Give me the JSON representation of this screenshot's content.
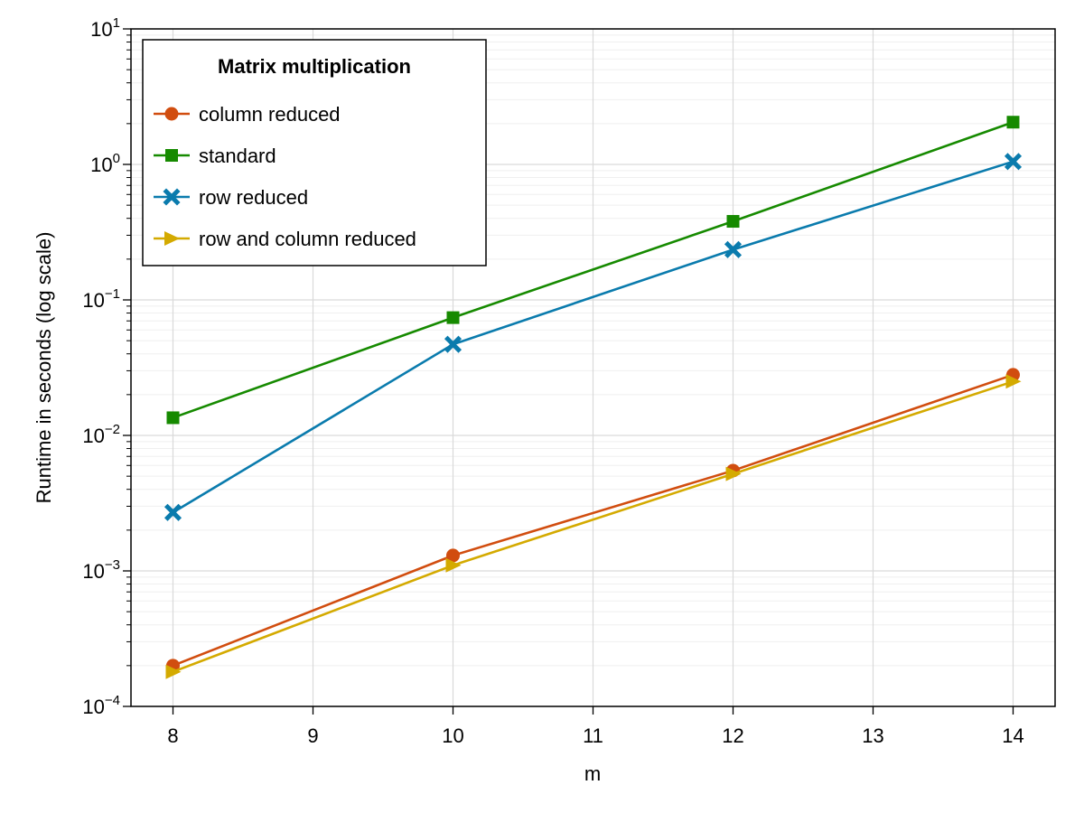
{
  "chart_data": {
    "type": "line",
    "title": "",
    "xlabel": "m",
    "ylabel": "Runtime in seconds (log scale)",
    "y_scale": "log",
    "xlim": [
      7.7,
      14.3
    ],
    "ylim": [
      0.0001,
      10
    ],
    "x_ticks": [
      8,
      9,
      10,
      11,
      12,
      13,
      14
    ],
    "y_ticks": [
      {
        "base": "10",
        "exp": "−4",
        "value": 0.0001
      },
      {
        "base": "10",
        "exp": "−3",
        "value": 0.001
      },
      {
        "base": "10",
        "exp": "−2",
        "value": 0.01
      },
      {
        "base": "10",
        "exp": "−1",
        "value": 0.1
      },
      {
        "base": "10",
        "exp": "0",
        "value": 1
      },
      {
        "base": "10",
        "exp": "1",
        "value": 10
      }
    ],
    "grid": true,
    "legend": {
      "title": "Matrix multiplication",
      "placement": "top-left"
    },
    "x": [
      8,
      10,
      12,
      14
    ],
    "series": [
      {
        "name": "column reduced",
        "color": "#d14d0f",
        "marker": "circle",
        "values": [
          0.0002,
          0.0013,
          0.0055,
          0.028
        ]
      },
      {
        "name": "standard",
        "color": "#168a00",
        "marker": "square",
        "values": [
          0.0135,
          0.074,
          0.38,
          2.05
        ]
      },
      {
        "name": "row reduced",
        "color": "#0a7bad",
        "marker": "cross",
        "values": [
          0.0027,
          0.047,
          0.235,
          1.05
        ]
      },
      {
        "name": "row and column reduced",
        "color": "#d4aa00",
        "marker": "triangle-right",
        "values": [
          0.00018,
          0.0011,
          0.0052,
          0.025
        ]
      }
    ]
  }
}
